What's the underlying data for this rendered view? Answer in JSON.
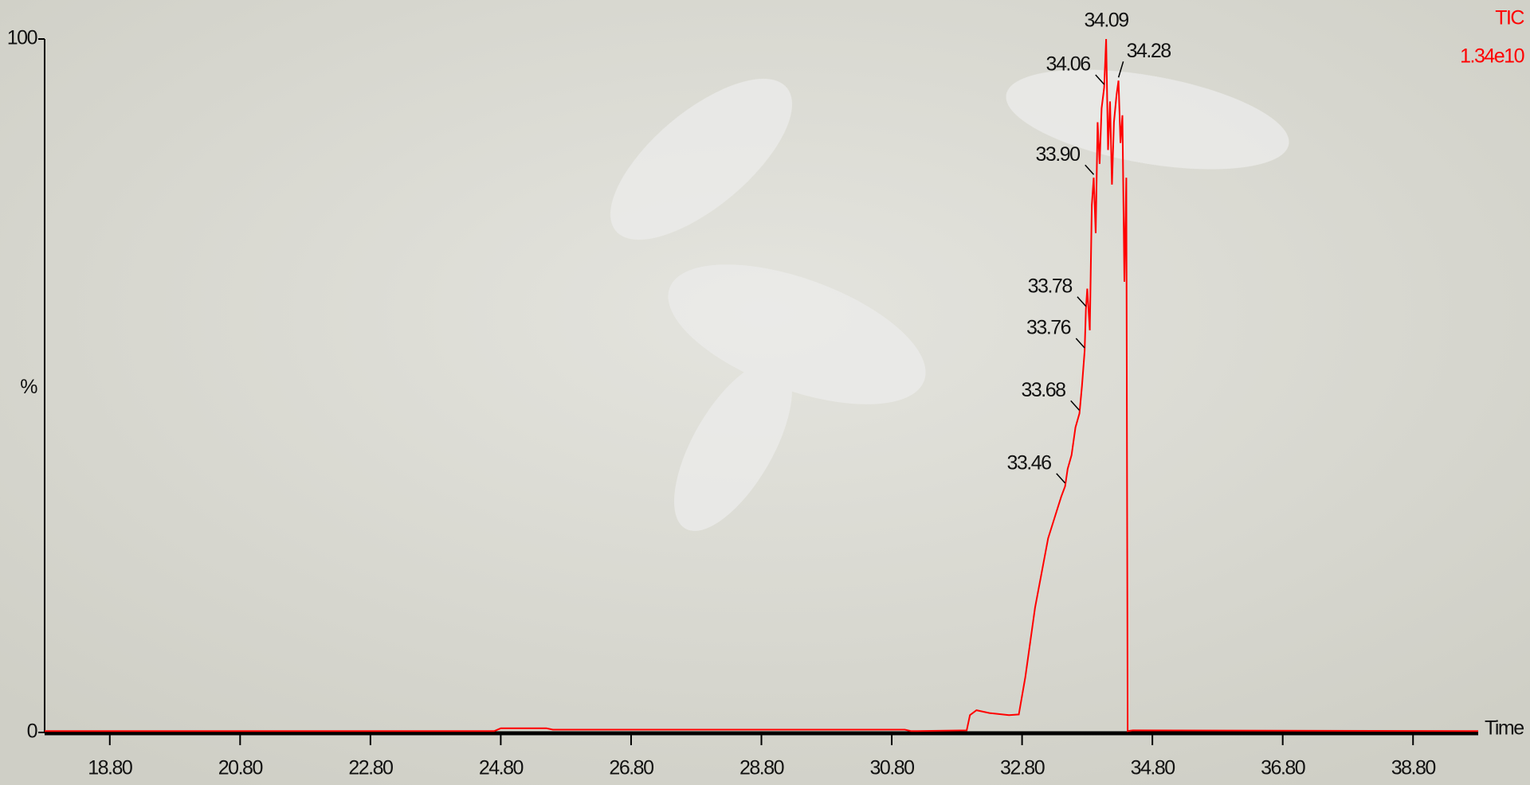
{
  "chart_data": {
    "type": "line",
    "x": [
      17.8,
      24.7,
      24.8,
      25.5,
      25.6,
      31.0,
      31.1,
      31.95,
      32.0,
      32.1,
      32.3,
      32.6,
      32.75,
      32.85,
      33.0,
      33.1,
      33.2,
      33.3,
      33.4,
      33.46,
      33.5,
      33.56,
      33.62,
      33.68,
      33.72,
      33.76,
      33.78,
      33.8,
      33.84,
      33.87,
      33.9,
      33.93,
      33.96,
      33.99,
      34.02,
      34.06,
      34.09,
      34.12,
      34.15,
      34.18,
      34.21,
      34.25,
      34.28,
      34.31,
      34.34,
      34.37,
      34.4,
      34.42,
      34.5,
      39.8
    ],
    "series": [
      {
        "name": "TIC",
        "color": "#ff0000",
        "values": [
          0.2,
          0.2,
          0.6,
          0.6,
          0.4,
          0.4,
          0.2,
          0.3,
          2.5,
          3.2,
          2.8,
          2.5,
          2.6,
          8,
          18,
          23,
          28,
          31,
          34,
          35.5,
          38,
          40,
          44,
          46,
          50,
          55,
          61,
          64,
          58,
          76,
          80,
          72,
          88,
          82,
          90,
          93,
          100,
          84,
          91,
          79,
          88,
          92,
          94,
          85,
          89,
          65,
          80,
          0.2,
          0.3,
          0.2
        ]
      }
    ],
    "intensity": "1.34e10",
    "xlabel": "Time",
    "ylabel": "%",
    "xlim": [
      17.8,
      39.8
    ],
    "ylim": [
      0,
      100
    ],
    "yticks": [
      0,
      100
    ],
    "xticks": [
      {
        "value": 18.8,
        "label": "18.80"
      },
      {
        "value": 20.8,
        "label": "20.80"
      },
      {
        "value": 22.8,
        "label": "22.80"
      },
      {
        "value": 24.8,
        "label": "24.80"
      },
      {
        "value": 26.8,
        "label": "26.80"
      },
      {
        "value": 28.8,
        "label": "28.80"
      },
      {
        "value": 30.8,
        "label": "30.80"
      },
      {
        "value": 32.8,
        "label": "32.80"
      },
      {
        "value": 34.8,
        "label": "34.80"
      },
      {
        "value": 36.8,
        "label": "36.80"
      },
      {
        "value": 38.8,
        "label": "38.80"
      }
    ],
    "peak_labels": [
      {
        "x": 33.46,
        "label": "33.46"
      },
      {
        "x": 33.68,
        "label": "33.68"
      },
      {
        "x": 33.76,
        "label": "33.76"
      },
      {
        "x": 33.78,
        "label": "33.78"
      },
      {
        "x": 33.9,
        "label": "33.90"
      },
      {
        "x": 34.06,
        "label": "34.06"
      },
      {
        "x": 34.09,
        "label": "34.09"
      },
      {
        "x": 34.28,
        "label": "34.28"
      }
    ]
  }
}
